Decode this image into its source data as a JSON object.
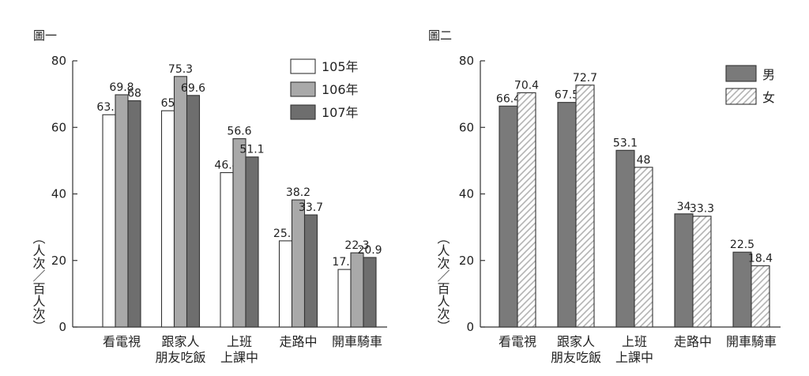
{
  "chart_data": [
    {
      "type": "bar",
      "title": "圖一",
      "ylabel": "（人次／百人次）",
      "ylim": [
        0,
        80
      ],
      "yticks": [
        0,
        20,
        40,
        60,
        80
      ],
      "categories": [
        [
          "看電視"
        ],
        [
          "跟家人",
          "朋友吃飯"
        ],
        [
          "上班",
          "上課中"
        ],
        [
          "走路中"
        ],
        [
          "開車騎車"
        ]
      ],
      "series": [
        {
          "name": "105年",
          "values": [
            63.8,
            65,
            46.4,
            25.9,
            17.3
          ],
          "color": "#ffffff",
          "pattern": "solid"
        },
        {
          "name": "106年",
          "values": [
            69.8,
            75.3,
            56.6,
            38.2,
            22.3
          ],
          "color": "#a9a9a9",
          "pattern": "solid"
        },
        {
          "name": "107年",
          "values": [
            68,
            69.6,
            51.1,
            33.7,
            20.9
          ],
          "color": "#6e6e6e",
          "pattern": "solid"
        }
      ],
      "value_labels": [
        [
          "63.8",
          "65",
          "46.4",
          "25.9",
          "17.3"
        ],
        [
          "69.8",
          "75.3",
          "56.6",
          "38.2",
          "22.3"
        ],
        [
          "68",
          "69.6",
          "51.1",
          "33.7",
          "20.9"
        ]
      ],
      "legend": "top-right",
      "grid": false
    },
    {
      "type": "bar",
      "title": "圖二",
      "ylabel": "（人次／百人次）",
      "ylim": [
        0,
        80
      ],
      "yticks": [
        0,
        20,
        40,
        60,
        80
      ],
      "categories": [
        [
          "看電視"
        ],
        [
          "跟家人",
          "朋友吃飯"
        ],
        [
          "上班",
          "上課中"
        ],
        [
          "走路中"
        ],
        [
          "開車騎車"
        ]
      ],
      "series": [
        {
          "name": "男",
          "values": [
            66.4,
            67.5,
            53.1,
            34,
            22.5
          ],
          "color": "#7a7a7a",
          "pattern": "solid"
        },
        {
          "name": "女",
          "values": [
            70.4,
            72.7,
            48,
            33.3,
            18.4
          ],
          "color": "#ffffff",
          "pattern": "hatch"
        }
      ],
      "value_labels": [
        [
          "66.4",
          "67.5",
          "53.1",
          "34",
          "22.5"
        ],
        [
          "70.4",
          "72.7",
          "48",
          "33.3",
          "18.4"
        ]
      ],
      "legend": "top-right",
      "grid": false
    }
  ]
}
